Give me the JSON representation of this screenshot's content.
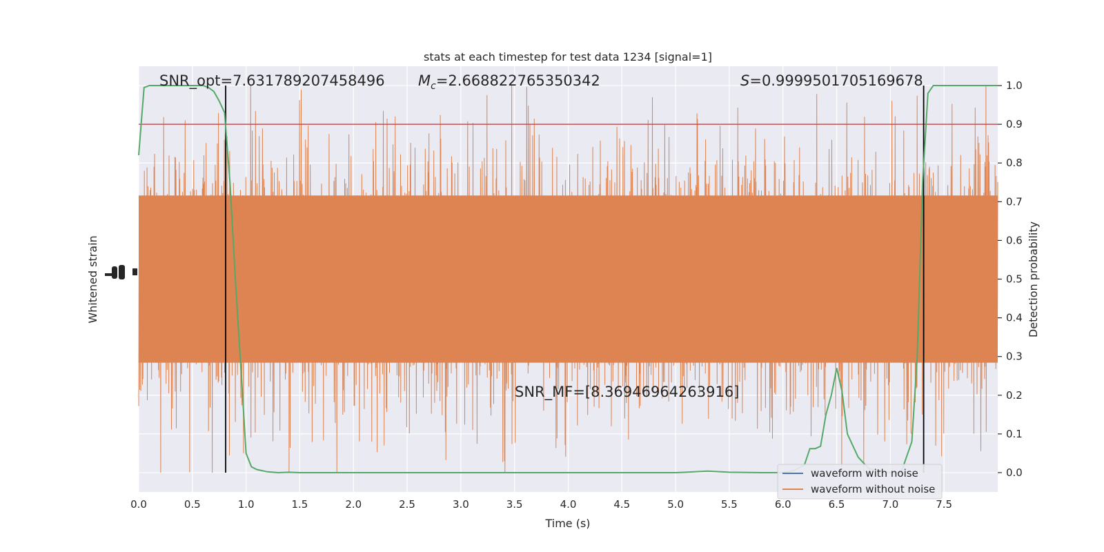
{
  "chart_data": {
    "type": "line",
    "title": "stats at each timestep for test data 1234 [signal=1]",
    "xlabel": "Time (s)",
    "ylabel_left": "Whitened strain",
    "ylabel_right": "Detection probability",
    "xlim": [
      0.0,
      8.0
    ],
    "ylim_right": [
      -0.05,
      1.05
    ],
    "x_ticks": [
      "0.0",
      "0.5",
      "1.0",
      "1.5",
      "2.0",
      "2.5",
      "3.0",
      "3.5",
      "4.0",
      "4.5",
      "5.0",
      "5.5",
      "6.0",
      "6.5",
      "7.0",
      "7.5"
    ],
    "y_ticks_right": [
      "0.0",
      "0.1",
      "0.2",
      "0.3",
      "0.4",
      "0.5",
      "0.6",
      "0.7",
      "0.8",
      "0.9",
      "1.0"
    ],
    "grid": true,
    "legend_position": "lower-right",
    "annotations": {
      "snr_opt": "SNR_opt=7.631789207458496",
      "mc_symbol": "M",
      "mc_sub": "c",
      "mc_value": "=2.668822765350342",
      "s_symbol": "S",
      "s_value": "=0.9999501705169678",
      "snr_mf": "SNR_MF=[8.36946964263916]"
    },
    "threshold": 0.9,
    "vlines": [
      0.81,
      7.31
    ],
    "series": [
      {
        "name": "waveform with noise",
        "color": "#4c72b0"
      },
      {
        "name": "waveform without noise",
        "color": "#dd8452"
      }
    ],
    "strain_band": {
      "center": 0.5,
      "typical_half_width": 0.27,
      "max_excursion": 0.5
    },
    "detection_probability": {
      "color": "#55a868",
      "x": [
        0.0,
        0.05,
        0.1,
        0.2,
        0.3,
        0.4,
        0.5,
        0.55,
        0.6,
        0.65,
        0.7,
        0.75,
        0.8,
        0.85,
        0.9,
        0.95,
        1.0,
        1.05,
        1.1,
        1.2,
        1.3,
        1.4,
        1.5,
        1.6,
        2.0,
        3.0,
        4.0,
        5.0,
        5.1,
        5.3,
        5.5,
        5.8,
        6.0,
        6.1,
        6.2,
        6.25,
        6.3,
        6.35,
        6.4,
        6.45,
        6.5,
        6.55,
        6.6,
        6.7,
        6.8,
        7.0,
        7.1,
        7.2,
        7.25,
        7.3,
        7.35,
        7.4,
        7.5,
        7.6,
        8.0
      ],
      "y": [
        0.82,
        0.995,
        1.0,
        1.0,
        1.0,
        1.0,
        1.0,
        1.0,
        1.0,
        0.995,
        0.985,
        0.96,
        0.93,
        0.75,
        0.5,
        0.28,
        0.05,
        0.015,
        0.008,
        0.002,
        0.0,
        0.001,
        0.0,
        0.0,
        0.0,
        0.0,
        0.0,
        0.0,
        0.001,
        0.004,
        0.001,
        0.0,
        0.0,
        0.005,
        0.02,
        0.062,
        0.062,
        0.068,
        0.15,
        0.2,
        0.27,
        0.21,
        0.1,
        0.04,
        0.01,
        0.0,
        0.0,
        0.08,
        0.3,
        0.75,
        0.98,
        1.0,
        1.0,
        1.0,
        1.0
      ]
    }
  }
}
